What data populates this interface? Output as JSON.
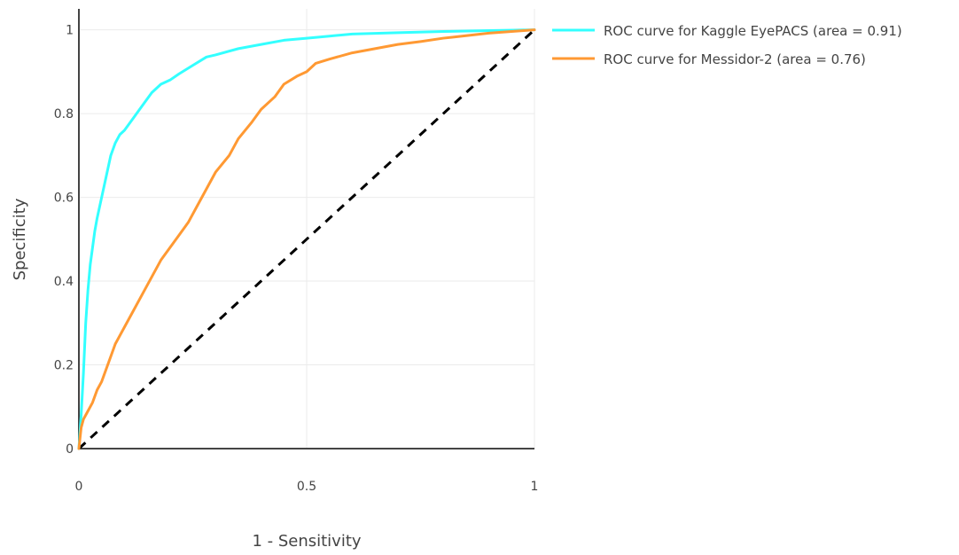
{
  "chart_data": {
    "type": "line",
    "xlabel": "1 - Sensitivity",
    "ylabel": "Specificity",
    "xlim": [
      0,
      1
    ],
    "ylim": [
      0,
      1.05
    ],
    "x_ticks": [
      0,
      0.5,
      1
    ],
    "x_tick_labels": [
      "0",
      "0.5",
      "1"
    ],
    "y_ticks": [
      0,
      0.2,
      0.4,
      0.6,
      0.8,
      1
    ],
    "y_tick_labels": [
      "0",
      "0.2",
      "0.4",
      "0.6",
      "0.8",
      "1"
    ],
    "grid": true,
    "legend_position": "top-right",
    "series": [
      {
        "name": "ROC curve for Kaggle EyePACS (area = 0.91)",
        "color": "#33ffff",
        "x": [
          0,
          0.005,
          0.01,
          0.015,
          0.02,
          0.025,
          0.03,
          0.035,
          0.04,
          0.05,
          0.06,
          0.07,
          0.08,
          0.09,
          0.1,
          0.12,
          0.14,
          0.16,
          0.18,
          0.2,
          0.22,
          0.25,
          0.28,
          0.3,
          0.35,
          0.4,
          0.45,
          0.5,
          0.55,
          0.6,
          0.7,
          0.8,
          0.9,
          1
        ],
        "y": [
          0,
          0.08,
          0.18,
          0.3,
          0.38,
          0.44,
          0.48,
          0.52,
          0.55,
          0.6,
          0.65,
          0.7,
          0.73,
          0.75,
          0.76,
          0.79,
          0.82,
          0.85,
          0.87,
          0.88,
          0.895,
          0.915,
          0.935,
          0.94,
          0.955,
          0.965,
          0.975,
          0.98,
          0.985,
          0.99,
          0.993,
          0.996,
          0.998,
          1
        ]
      },
      {
        "name": "ROC curve for Messidor-2 (area = 0.76)",
        "color": "#ff9933",
        "x": [
          0,
          0.005,
          0.01,
          0.02,
          0.03,
          0.04,
          0.05,
          0.06,
          0.08,
          0.1,
          0.12,
          0.14,
          0.16,
          0.18,
          0.2,
          0.22,
          0.24,
          0.26,
          0.28,
          0.3,
          0.33,
          0.35,
          0.38,
          0.4,
          0.43,
          0.45,
          0.48,
          0.5,
          0.52,
          0.55,
          0.6,
          0.65,
          0.7,
          0.75,
          0.8,
          0.85,
          0.9,
          0.95,
          1
        ],
        "y": [
          0,
          0.05,
          0.07,
          0.09,
          0.11,
          0.14,
          0.16,
          0.19,
          0.25,
          0.29,
          0.33,
          0.37,
          0.41,
          0.45,
          0.48,
          0.51,
          0.54,
          0.58,
          0.62,
          0.66,
          0.7,
          0.74,
          0.78,
          0.81,
          0.84,
          0.87,
          0.89,
          0.9,
          0.92,
          0.93,
          0.945,
          0.955,
          0.965,
          0.972,
          0.98,
          0.986,
          0.992,
          0.996,
          1
        ]
      }
    ],
    "reference_line": {
      "x": [
        0,
        1
      ],
      "y": [
        0,
        1
      ],
      "color": "#000000",
      "style": "dashed"
    }
  }
}
